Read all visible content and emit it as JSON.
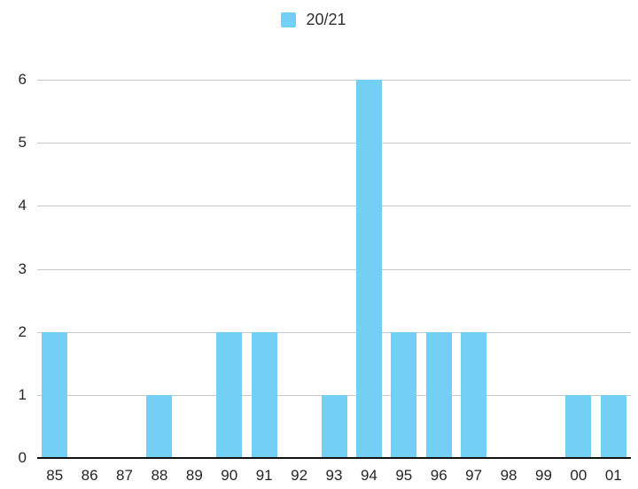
{
  "legend": {
    "label": "20/21"
  },
  "chart_data": {
    "type": "bar",
    "title": "",
    "categories": [
      "85",
      "86",
      "87",
      "88",
      "89",
      "90",
      "91",
      "92",
      "93",
      "94",
      "95",
      "96",
      "97",
      "98",
      "99",
      "00",
      "01"
    ],
    "series": [
      {
        "name": "20/21",
        "values": [
          2,
          0,
          0,
          1,
          0,
          2,
          2,
          0,
          1,
          6,
          2,
          2,
          2,
          0,
          0,
          1,
          1
        ],
        "color": "#73CFF3"
      }
    ],
    "xlabel": "",
    "ylabel": "",
    "ylim": [
      0,
      6
    ],
    "yticks": [
      0,
      1,
      2,
      3,
      4,
      5,
      6
    ],
    "grid": true,
    "legend_position": "top-center"
  },
  "colors": {
    "bar": "#73CFF3",
    "gridline": "#c7c7c7",
    "axis": "#111111",
    "text": "#262626",
    "background": "#ffffff"
  }
}
